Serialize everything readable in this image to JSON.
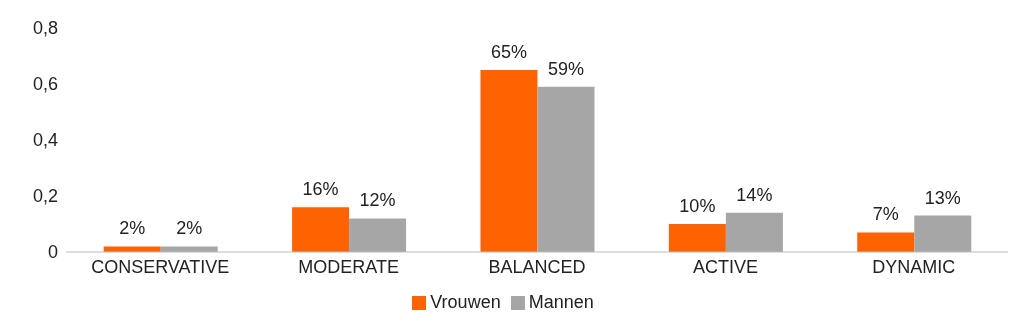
{
  "chart_data": {
    "type": "bar",
    "categories": [
      "CONSERVATIVE",
      "MODERATE",
      "BALANCED",
      "ACTIVE",
      "DYNAMIC"
    ],
    "series": [
      {
        "name": "Vrouwen",
        "color": "#ff6200",
        "values": [
          0.02,
          0.16,
          0.65,
          0.1,
          0.07
        ],
        "value_labels": [
          "2%",
          "16%",
          "65%",
          "10%",
          "7%"
        ]
      },
      {
        "name": "Mannen",
        "color": "#a6a6a6",
        "values": [
          0.02,
          0.12,
          0.59,
          0.14,
          0.13
        ],
        "value_labels": [
          "2%",
          "12%",
          "59%",
          "14%",
          "13%"
        ]
      }
    ],
    "ylim": [
      0,
      0.8
    ],
    "yticks": [
      {
        "value": 0,
        "label": "0"
      },
      {
        "value": 0.2,
        "label": "0,2"
      },
      {
        "value": 0.4,
        "label": "0,4"
      },
      {
        "value": 0.6,
        "label": "0,6"
      },
      {
        "value": 0.8,
        "label": "0,8"
      }
    ],
    "grid": false,
    "legend": "bottom"
  }
}
